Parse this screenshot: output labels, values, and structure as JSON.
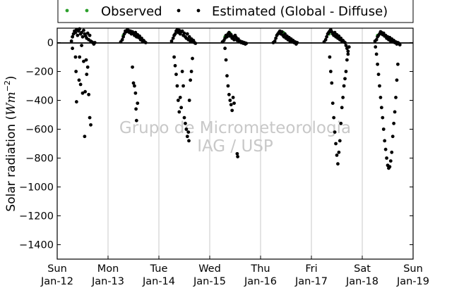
{
  "chart_data": {
    "type": "scatter",
    "title": "",
    "xlabel": "",
    "ylabel": "Solar radiation (Wm⁻²)",
    "ylabel_parts": {
      "main": "Solar radiation (",
      "unit": "Wm",
      "exp": "−2",
      "close": ")"
    },
    "ylim": [
      -1500,
      100
    ],
    "xlim": [
      0,
      7
    ],
    "grid": "vertical",
    "legend_position": "top",
    "legend": [
      {
        "label": "Observed",
        "color": "#2ca02c"
      },
      {
        "label": "Estimated (Global - Diffuse)",
        "color": "#000000"
      }
    ],
    "yticks": [
      0,
      -200,
      -400,
      -600,
      -800,
      -1000,
      -1200,
      -1400
    ],
    "ytick_labels": [
      "0",
      "−200",
      "−400",
      "−600",
      "−800",
      "−1000",
      "−1200",
      "−1400"
    ],
    "xticks": [
      {
        "day": 0,
        "line1": "Sun",
        "line2": "Jan-12"
      },
      {
        "day": 1,
        "line1": "Mon",
        "line2": "Jan-13"
      },
      {
        "day": 2,
        "line1": "Tue",
        "line2": "Jan-14"
      },
      {
        "day": 3,
        "line1": "Wed",
        "line2": "Jan-15"
      },
      {
        "day": 4,
        "line1": "Thu",
        "line2": "Jan-16"
      },
      {
        "day": 5,
        "line1": "Fri",
        "line2": "Jan-17"
      },
      {
        "day": 6,
        "line1": "Sat",
        "line2": "Jan-18"
      },
      {
        "day": 7,
        "line1": "Sun",
        "line2": "Jan-19"
      }
    ],
    "watermark": [
      "Grupo de Micrometeorologia",
      "IAG / USP"
    ],
    "series": [
      {
        "name": "Observed",
        "color": "#2ca02c",
        "note": "daytime values cluster near 0..90 Wm-2",
        "x": [
          0.3,
          0.35,
          1.3,
          1.38,
          2.32,
          2.4,
          3.3,
          3.4,
          4.32,
          4.45,
          5.35,
          6.3
        ],
        "y": [
          40,
          70,
          50,
          80,
          60,
          75,
          40,
          65,
          50,
          70,
          60,
          50
        ]
      },
      {
        "name": "Estimated (Global - Diffuse)",
        "color": "#000000",
        "days": [
          {
            "start": 0.2,
            "end": 0.82,
            "x": [
              0.28,
              0.3,
              0.32,
              0.34,
              0.36,
              0.38,
              0.4,
              0.42,
              0.44,
              0.46,
              0.48,
              0.5,
              0.52,
              0.54,
              0.56,
              0.58,
              0.6,
              0.62,
              0.64,
              0.66,
              0.68,
              0.7,
              0.72,
              0.74,
              0.36,
              0.37,
              0.38,
              0.43,
              0.5,
              0.54,
              0.55,
              0.57,
              0.58,
              0.6,
              0.62,
              0.64,
              0.66,
              0.3,
              0.44,
              0.46,
              0.48,
              0.52
            ],
            "y": [
              10,
              40,
              60,
              80,
              70,
              90,
              50,
              80,
              95,
              60,
              70,
              40,
              85,
              60,
              45,
              30,
              65,
              20,
              50,
              10,
              5,
              0,
              -10,
              0,
              -100,
              -200,
              -410,
              -260,
              -350,
              -650,
              -340,
              -120,
              -220,
              -170,
              -360,
              -520,
              -570,
              -40,
              -100,
              -290,
              -20,
              -130
            ]
          },
          {
            "start": 1.2,
            "end": 1.8,
            "x": [
              1.25,
              1.28,
              1.3,
              1.32,
              1.34,
              1.36,
              1.38,
              1.4,
              1.42,
              1.44,
              1.46,
              1.48,
              1.5,
              1.52,
              1.54,
              1.56,
              1.58,
              1.6,
              1.62,
              1.64,
              1.66,
              1.68,
              1.7,
              1.72,
              1.74,
              1.48,
              1.5,
              1.52,
              1.54,
              1.55,
              1.56,
              1.58
            ],
            "y": [
              5,
              20,
              40,
              60,
              80,
              75,
              90,
              85,
              70,
              80,
              60,
              75,
              65,
              50,
              70,
              40,
              55,
              35,
              45,
              20,
              30,
              10,
              15,
              5,
              0,
              -170,
              -280,
              -300,
              -350,
              -460,
              -540,
              -420
            ]
          },
          {
            "start": 2.2,
            "end": 2.82,
            "x": [
              2.25,
              2.28,
              2.3,
              2.32,
              2.34,
              2.36,
              2.38,
              2.4,
              2.42,
              2.44,
              2.46,
              2.48,
              2.5,
              2.52,
              2.54,
              2.56,
              2.58,
              2.6,
              2.62,
              2.64,
              2.66,
              2.68,
              2.7,
              2.72,
              2.3,
              2.32,
              2.34,
              2.36,
              2.38,
              2.4,
              2.42,
              2.44,
              2.46,
              2.48,
              2.5,
              2.52,
              2.54,
              2.56,
              2.58,
              2.59,
              2.6,
              2.62,
              2.64,
              2.66
            ],
            "y": [
              10,
              30,
              50,
              60,
              80,
              90,
              70,
              85,
              60,
              75,
              80,
              50,
              65,
              40,
              30,
              60,
              20,
              40,
              10,
              25,
              5,
              15,
              0,
              -5,
              -100,
              -160,
              -220,
              -300,
              -400,
              -480,
              -380,
              -450,
              -200,
              -300,
              -520,
              -560,
              -600,
              -650,
              -620,
              -680,
              -400,
              -260,
              -200,
              -110
            ]
          },
          {
            "start": 3.2,
            "end": 3.8,
            "x": [
              3.25,
              3.28,
              3.3,
              3.32,
              3.34,
              3.36,
              3.38,
              3.4,
              3.42,
              3.44,
              3.46,
              3.48,
              3.5,
              3.52,
              3.54,
              3.56,
              3.58,
              3.6,
              3.62,
              3.64,
              3.66,
              3.68,
              3.7,
              3.72,
              3.3,
              3.32,
              3.34,
              3.36,
              3.38,
              3.4,
              3.42,
              3.44,
              3.46,
              3.48,
              3.54,
              3.55
            ],
            "y": [
              5,
              15,
              30,
              50,
              40,
              60,
              70,
              45,
              55,
              30,
              40,
              20,
              50,
              35,
              15,
              25,
              5,
              10,
              0,
              5,
              -5,
              0,
              -10,
              -5,
              -40,
              -120,
              -230,
              -300,
              -360,
              -400,
              -430,
              -470,
              -380,
              -420,
              -770,
              -790
            ]
          },
          {
            "start": 4.2,
            "end": 4.8,
            "x": [
              4.25,
              4.28,
              4.3,
              4.32,
              4.34,
              4.36,
              4.38,
              4.4,
              4.42,
              4.44,
              4.46,
              4.48,
              4.5,
              4.52,
              4.54,
              4.56,
              4.58,
              4.6,
              4.62,
              4.64,
              4.66,
              4.68,
              4.7,
              4.72
            ],
            "y": [
              0,
              10,
              30,
              50,
              60,
              70,
              80,
              60,
              75,
              50,
              40,
              60,
              30,
              45,
              20,
              35,
              10,
              25,
              5,
              15,
              0,
              5,
              -10,
              0
            ]
          },
          {
            "start": 5.2,
            "end": 5.82,
            "x": [
              5.25,
              5.28,
              5.3,
              5.32,
              5.34,
              5.36,
              5.38,
              5.4,
              5.42,
              5.44,
              5.46,
              5.48,
              5.5,
              5.52,
              5.54,
              5.56,
              5.58,
              5.6,
              5.62,
              5.64,
              5.66,
              5.68,
              5.7,
              5.72,
              5.36,
              5.38,
              5.4,
              5.42,
              5.44,
              5.46,
              5.48,
              5.5,
              5.52,
              5.54,
              5.56,
              5.58,
              5.6,
              5.62,
              5.64,
              5.66,
              5.68,
              5.7,
              5.72,
              5.74
            ],
            "y": [
              5,
              20,
              40,
              60,
              70,
              80,
              90,
              75,
              60,
              50,
              70,
              40,
              55,
              30,
              45,
              20,
              30,
              10,
              15,
              5,
              0,
              -20,
              -40,
              -60,
              -100,
              -200,
              -280,
              -420,
              -520,
              -620,
              -700,
              -780,
              -840,
              -760,
              -680,
              -560,
              -450,
              -380,
              -300,
              -250,
              -200,
              -120,
              -80,
              -30
            ]
          },
          {
            "start": 6.2,
            "end": 6.82,
            "x": [
              6.25,
              6.28,
              6.3,
              6.32,
              6.34,
              6.36,
              6.38,
              6.4,
              6.42,
              6.44,
              6.46,
              6.48,
              6.5,
              6.52,
              6.54,
              6.56,
              6.58,
              6.6,
              6.62,
              6.64,
              6.66,
              6.68,
              6.7,
              6.72,
              6.74,
              6.26,
              6.28,
              6.3,
              6.32,
              6.34,
              6.36,
              6.38,
              6.4,
              6.42,
              6.44,
              6.46,
              6.48,
              6.5,
              6.52,
              6.54,
              6.56,
              6.58,
              6.6,
              6.62,
              6.64,
              6.66,
              6.68,
              6.7
            ],
            "y": [
              10,
              20,
              40,
              50,
              60,
              75,
              70,
              55,
              65,
              45,
              50,
              30,
              40,
              20,
              35,
              10,
              25,
              5,
              15,
              0,
              5,
              -10,
              0,
              -5,
              -15,
              -30,
              -80,
              -150,
              -220,
              -300,
              -380,
              -450,
              -520,
              -600,
              -680,
              -740,
              -800,
              -850,
              -870,
              -860,
              -820,
              -760,
              -650,
              -560,
              -480,
              -380,
              -260,
              -150
            ]
          }
        ]
      }
    ]
  }
}
